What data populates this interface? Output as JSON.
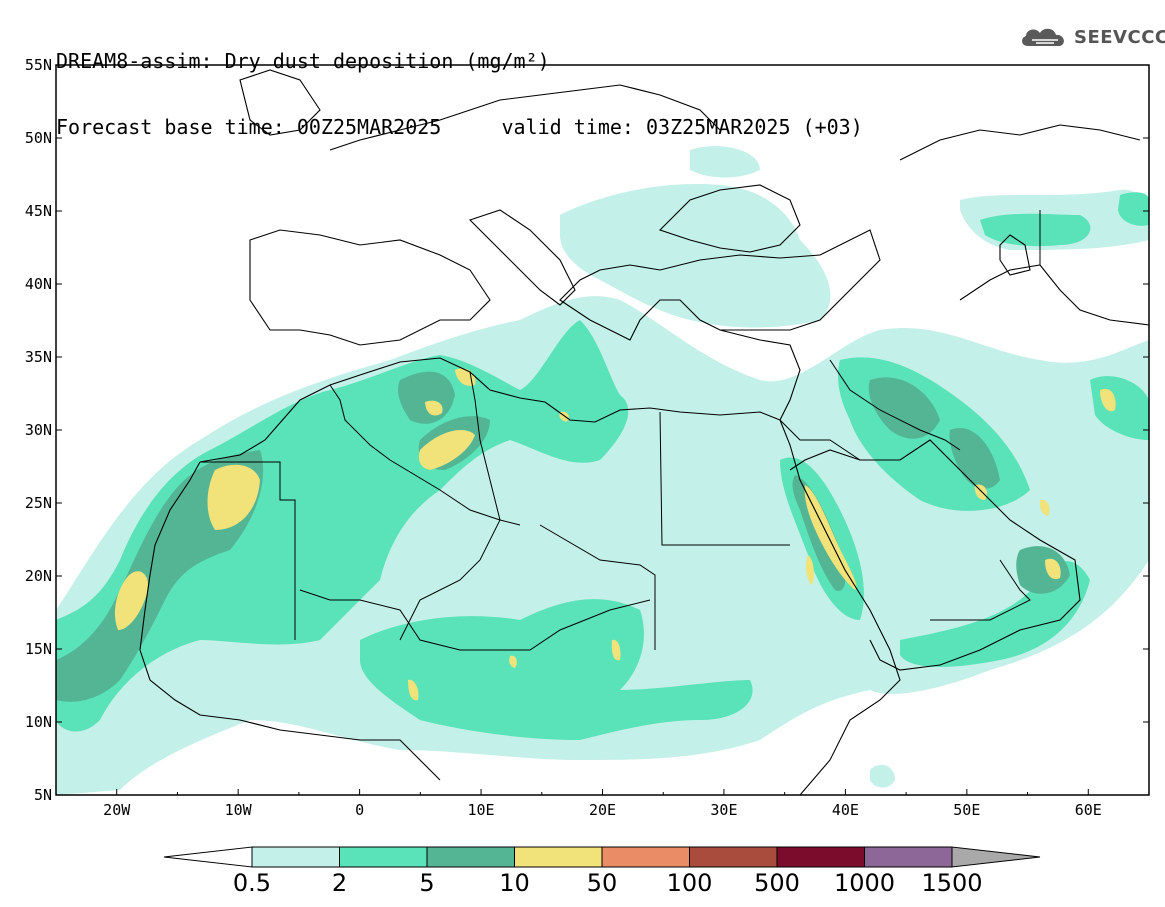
{
  "header": {
    "line1": "DREAM8-assim: Dry dust deposition (mg/m²)",
    "line2": "Forecast base time: 00Z25MAR2025     valid time: 03Z25MAR2025 (+03)"
  },
  "logo": {
    "text": "SEEVCCC",
    "icon": "cloud-icon"
  },
  "map": {
    "lon_range": [
      -25,
      65
    ],
    "lat_range": [
      5,
      55
    ],
    "x_ticks": [
      {
        "lon": -20,
        "label": "20W"
      },
      {
        "lon": -10,
        "label": "10W"
      },
      {
        "lon": 0,
        "label": "0"
      },
      {
        "lon": 10,
        "label": "10E"
      },
      {
        "lon": 20,
        "label": "20E"
      },
      {
        "lon": 30,
        "label": "30E"
      },
      {
        "lon": 40,
        "label": "40E"
      },
      {
        "lon": 50,
        "label": "50E"
      },
      {
        "lon": 60,
        "label": "60E"
      }
    ],
    "y_ticks": [
      {
        "lat": 55,
        "label": "55N"
      },
      {
        "lat": 50,
        "label": "50N"
      },
      {
        "lat": 45,
        "label": "45N"
      },
      {
        "lat": 40,
        "label": "40N"
      },
      {
        "lat": 35,
        "label": "35N"
      },
      {
        "lat": 30,
        "label": "30N"
      },
      {
        "lat": 25,
        "label": "25N"
      },
      {
        "lat": 20,
        "label": "20N"
      },
      {
        "lat": 15,
        "label": "15N"
      },
      {
        "lat": 10,
        "label": "10N"
      },
      {
        "lat": 5,
        "label": "5N"
      }
    ]
  },
  "colorbar": {
    "under_color": "#ffffff",
    "over_color": "#a9a9a9",
    "bins": [
      {
        "color": "#c3f0e8"
      },
      {
        "color": "#5ae2b8"
      },
      {
        "color": "#54b595"
      },
      {
        "color": "#f1e27a"
      },
      {
        "color": "#ea8d66"
      },
      {
        "color": "#a94b3d"
      },
      {
        "color": "#7b0c2c"
      },
      {
        "color": "#8c6797"
      }
    ],
    "labels": [
      "0.5",
      "2",
      "5",
      "10",
      "50",
      "100",
      "500",
      "1000",
      "1500"
    ]
  }
}
